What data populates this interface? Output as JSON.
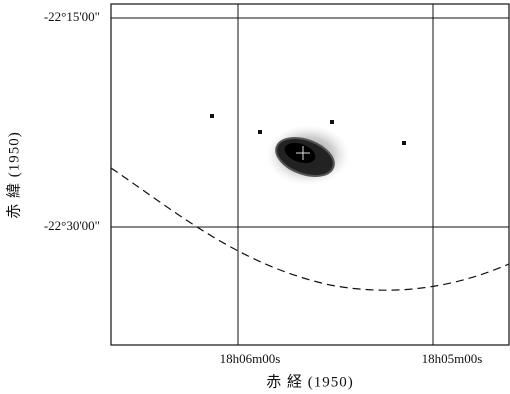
{
  "x_axis": {
    "label": "赤 経 (1950)",
    "ticks": [
      "18h06m00s",
      "18h05m00s"
    ]
  },
  "y_axis": {
    "label": "赤 緯 (1950)",
    "ticks": [
      "-22°15'00\"",
      "-22°30'00\""
    ]
  }
}
